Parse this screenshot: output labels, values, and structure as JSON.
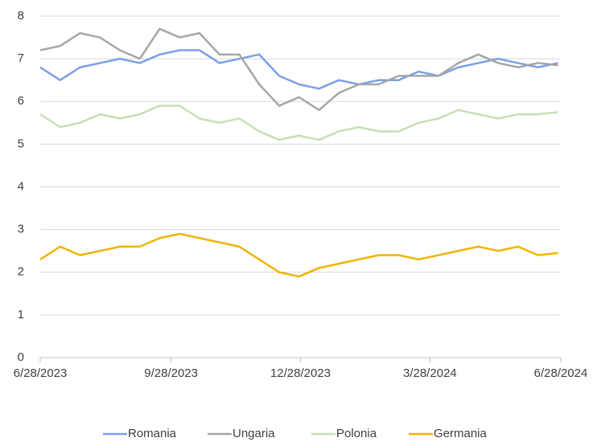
{
  "chart_data": {
    "type": "line",
    "x": [
      "2023-06-28",
      "2023-07-12",
      "2023-07-26",
      "2023-08-09",
      "2023-08-23",
      "2023-09-06",
      "2023-09-20",
      "2023-10-04",
      "2023-10-18",
      "2023-11-01",
      "2023-11-15",
      "2023-11-29",
      "2023-12-13",
      "2023-12-27",
      "2024-01-10",
      "2024-01-24",
      "2024-02-07",
      "2024-02-21",
      "2024-03-06",
      "2024-03-20",
      "2024-04-03",
      "2024-04-17",
      "2024-05-01",
      "2024-05-15",
      "2024-05-29",
      "2024-06-12",
      "2024-06-26"
    ],
    "series": [
      {
        "name": "Romania",
        "color": "#7b9fe8",
        "values": [
          6.8,
          6.5,
          6.8,
          6.9,
          7.0,
          6.9,
          7.1,
          7.2,
          7.2,
          6.9,
          7.0,
          7.1,
          6.6,
          6.4,
          6.3,
          6.5,
          6.4,
          6.5,
          6.5,
          6.7,
          6.6,
          6.8,
          6.9,
          7.0,
          6.9,
          6.8,
          6.9
        ]
      },
      {
        "name": "Ungaria",
        "color": "#a6a6a6",
        "values": [
          7.2,
          7.3,
          7.6,
          7.5,
          7.2,
          7.0,
          7.7,
          7.5,
          7.6,
          7.1,
          7.1,
          6.4,
          5.9,
          6.1,
          5.8,
          6.2,
          6.4,
          6.4,
          6.6,
          6.6,
          6.6,
          6.9,
          7.1,
          6.9,
          6.8,
          6.9,
          6.85
        ]
      },
      {
        "name": "Polonia",
        "color": "#c5e0b4",
        "values": [
          5.7,
          5.4,
          5.5,
          5.7,
          5.6,
          5.7,
          5.9,
          5.9,
          5.6,
          5.5,
          5.6,
          5.3,
          5.1,
          5.2,
          5.1,
          5.3,
          5.4,
          5.3,
          5.3,
          5.5,
          5.6,
          5.8,
          5.7,
          5.6,
          5.7,
          5.7,
          5.75
        ]
      },
      {
        "name": "Germania",
        "color": "#f0b400",
        "values": [
          2.3,
          2.6,
          2.4,
          2.5,
          2.6,
          2.6,
          2.8,
          2.9,
          2.8,
          2.7,
          2.6,
          2.3,
          2.0,
          1.9,
          2.1,
          2.2,
          2.3,
          2.4,
          2.4,
          2.3,
          2.4,
          2.5,
          2.6,
          2.5,
          2.6,
          2.4,
          2.45
        ]
      }
    ],
    "xlim": [
      "2023-06-28",
      "2024-06-28"
    ],
    "xticks": [
      {
        "value": "2023-06-28",
        "label": "6/28/2023"
      },
      {
        "value": "2023-09-28",
        "label": "9/28/2023"
      },
      {
        "value": "2023-12-28",
        "label": "12/28/2023"
      },
      {
        "value": "2024-03-28",
        "label": "3/28/2024"
      },
      {
        "value": "2024-06-28",
        "label": "6/28/2024"
      }
    ],
    "ylim": [
      0,
      8
    ],
    "yticks": [
      0,
      1,
      2,
      3,
      4,
      5,
      6,
      7,
      8
    ],
    "grid": true,
    "legend": "bottom"
  }
}
